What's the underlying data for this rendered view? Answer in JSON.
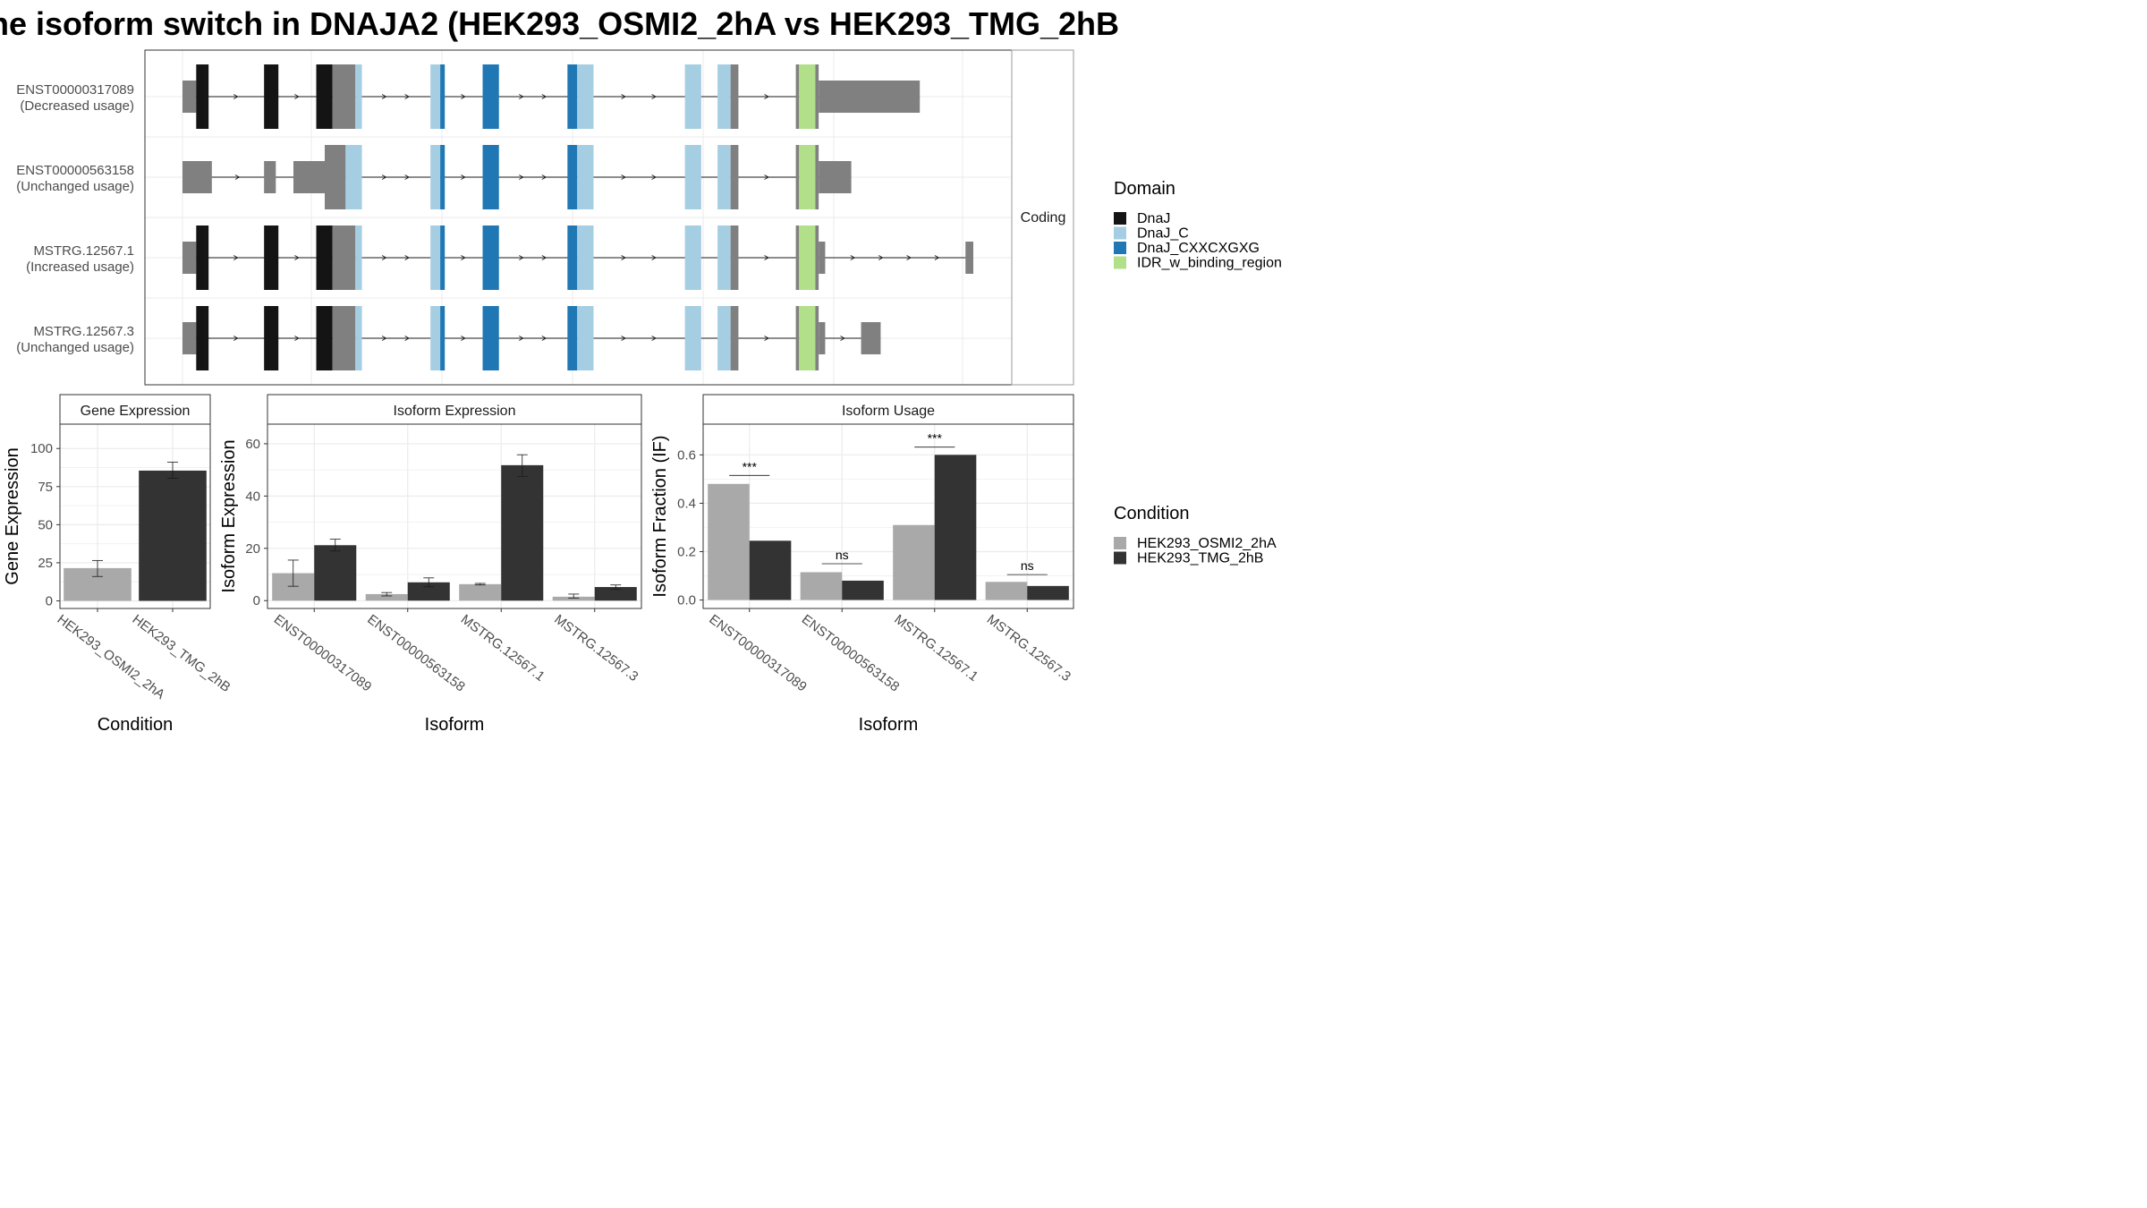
{
  "title": "ne isoform switch in DNAJA2 (HEK293_OSMI2_2hA vs HEK293_TMG_2hB",
  "structure": {
    "strip_label": "Coding",
    "transcripts": [
      {
        "id": "ENST00000317089",
        "status": "(Decreased usage)",
        "segments": [
          {
            "x0": 0.0,
            "x1": 2.1,
            "kind": "utr"
          },
          {
            "x0": 2.1,
            "x1": 3.5,
            "kind": "DnaJ"
          },
          {
            "x0": 3.5,
            "x1": 4.0,
            "kind": "DnaJ"
          },
          {
            "x0": 12.5,
            "x1": 14.7,
            "kind": "DnaJ"
          },
          {
            "x0": 20.5,
            "x1": 23.0,
            "kind": "DnaJ"
          },
          {
            "x0": 23.0,
            "x1": 26.5,
            "kind": "cds"
          },
          {
            "x0": 26.5,
            "x1": 27.5,
            "kind": "DnaJ_C"
          },
          {
            "x0": 38.0,
            "x1": 39.5,
            "kind": "DnaJ_C"
          },
          {
            "x0": 39.5,
            "x1": 40.2,
            "kind": "DnaJ_CXXCXGXG"
          },
          {
            "x0": 46.0,
            "x1": 48.5,
            "kind": "DnaJ_CXXCXGXG"
          },
          {
            "x0": 59.0,
            "x1": 60.5,
            "kind": "DnaJ_CXXCXGXG"
          },
          {
            "x0": 60.5,
            "x1": 63.0,
            "kind": "DnaJ_C"
          },
          {
            "x0": 77.0,
            "x1": 79.5,
            "kind": "DnaJ_C"
          },
          {
            "x0": 82.0,
            "x1": 84.0,
            "kind": "DnaJ_C"
          },
          {
            "x0": 84.0,
            "x1": 85.2,
            "kind": "cds"
          },
          {
            "x0": 94.0,
            "x1": 94.5,
            "kind": "cds"
          },
          {
            "x0": 94.5,
            "x1": 97.0,
            "kind": "IDR_w_binding_region"
          },
          {
            "x0": 97.0,
            "x1": 97.5,
            "kind": "cds"
          },
          {
            "x0": 97.5,
            "x1": 113.0,
            "kind": "utr"
          }
        ]
      },
      {
        "id": "ENST00000563158",
        "status": "(Unchanged usage)",
        "segments": [
          {
            "x0": 0.0,
            "x1": 4.5,
            "kind": "utr"
          },
          {
            "x0": 12.5,
            "x1": 14.3,
            "kind": "utr"
          },
          {
            "x0": 17.0,
            "x1": 21.8,
            "kind": "utr"
          },
          {
            "x0": 21.8,
            "x1": 25.0,
            "kind": "cds"
          },
          {
            "x0": 25.0,
            "x1": 27.5,
            "kind": "DnaJ_C"
          },
          {
            "x0": 38.0,
            "x1": 39.5,
            "kind": "DnaJ_C"
          },
          {
            "x0": 39.5,
            "x1": 40.2,
            "kind": "DnaJ_CXXCXGXG"
          },
          {
            "x0": 46.0,
            "x1": 48.5,
            "kind": "DnaJ_CXXCXGXG"
          },
          {
            "x0": 59.0,
            "x1": 60.5,
            "kind": "DnaJ_CXXCXGXG"
          },
          {
            "x0": 60.5,
            "x1": 63.0,
            "kind": "DnaJ_C"
          },
          {
            "x0": 77.0,
            "x1": 79.5,
            "kind": "DnaJ_C"
          },
          {
            "x0": 82.0,
            "x1": 84.0,
            "kind": "DnaJ_C"
          },
          {
            "x0": 84.0,
            "x1": 85.2,
            "kind": "cds"
          },
          {
            "x0": 94.0,
            "x1": 94.5,
            "kind": "cds"
          },
          {
            "x0": 94.5,
            "x1": 97.0,
            "kind": "IDR_w_binding_region"
          },
          {
            "x0": 97.0,
            "x1": 97.5,
            "kind": "cds"
          },
          {
            "x0": 97.5,
            "x1": 102.5,
            "kind": "utr"
          }
        ]
      },
      {
        "id": "MSTRG.12567.1",
        "status": "(Increased usage)",
        "segments": [
          {
            "x0": 0.0,
            "x1": 2.1,
            "kind": "utr"
          },
          {
            "x0": 2.1,
            "x1": 3.5,
            "kind": "DnaJ"
          },
          {
            "x0": 3.5,
            "x1": 4.0,
            "kind": "DnaJ"
          },
          {
            "x0": 12.5,
            "x1": 14.7,
            "kind": "DnaJ"
          },
          {
            "x0": 20.5,
            "x1": 23.0,
            "kind": "DnaJ"
          },
          {
            "x0": 23.0,
            "x1": 26.5,
            "kind": "cds"
          },
          {
            "x0": 26.5,
            "x1": 27.5,
            "kind": "DnaJ_C"
          },
          {
            "x0": 38.0,
            "x1": 39.5,
            "kind": "DnaJ_C"
          },
          {
            "x0": 39.5,
            "x1": 40.2,
            "kind": "DnaJ_CXXCXGXG"
          },
          {
            "x0": 46.0,
            "x1": 48.5,
            "kind": "DnaJ_CXXCXGXG"
          },
          {
            "x0": 59.0,
            "x1": 60.5,
            "kind": "DnaJ_CXXCXGXG"
          },
          {
            "x0": 60.5,
            "x1": 63.0,
            "kind": "DnaJ_C"
          },
          {
            "x0": 77.0,
            "x1": 79.5,
            "kind": "DnaJ_C"
          },
          {
            "x0": 82.0,
            "x1": 84.0,
            "kind": "DnaJ_C"
          },
          {
            "x0": 84.0,
            "x1": 85.2,
            "kind": "cds"
          },
          {
            "x0": 94.0,
            "x1": 94.5,
            "kind": "cds"
          },
          {
            "x0": 94.5,
            "x1": 97.0,
            "kind": "IDR_w_binding_region"
          },
          {
            "x0": 97.0,
            "x1": 97.5,
            "kind": "cds"
          },
          {
            "x0": 97.5,
            "x1": 98.5,
            "kind": "utr"
          },
          {
            "x0": 120.0,
            "x1": 121.2,
            "kind": "utr"
          }
        ]
      },
      {
        "id": "MSTRG.12567.3",
        "status": "(Unchanged usage)",
        "segments": [
          {
            "x0": 0.0,
            "x1": 2.1,
            "kind": "utr"
          },
          {
            "x0": 2.1,
            "x1": 3.5,
            "kind": "DnaJ"
          },
          {
            "x0": 3.5,
            "x1": 4.0,
            "kind": "DnaJ"
          },
          {
            "x0": 12.5,
            "x1": 14.7,
            "kind": "DnaJ"
          },
          {
            "x0": 20.5,
            "x1": 23.0,
            "kind": "DnaJ"
          },
          {
            "x0": 23.0,
            "x1": 26.5,
            "kind": "cds"
          },
          {
            "x0": 26.5,
            "x1": 27.5,
            "kind": "DnaJ_C"
          },
          {
            "x0": 38.0,
            "x1": 39.5,
            "kind": "DnaJ_C"
          },
          {
            "x0": 39.5,
            "x1": 40.2,
            "kind": "DnaJ_CXXCXGXG"
          },
          {
            "x0": 46.0,
            "x1": 48.5,
            "kind": "DnaJ_CXXCXGXG"
          },
          {
            "x0": 59.0,
            "x1": 60.5,
            "kind": "DnaJ_CXXCXGXG"
          },
          {
            "x0": 60.5,
            "x1": 63.0,
            "kind": "DnaJ_C"
          },
          {
            "x0": 77.0,
            "x1": 79.5,
            "kind": "DnaJ_C"
          },
          {
            "x0": 82.0,
            "x1": 84.0,
            "kind": "DnaJ_C"
          },
          {
            "x0": 84.0,
            "x1": 85.2,
            "kind": "cds"
          },
          {
            "x0": 94.0,
            "x1": 94.5,
            "kind": "cds"
          },
          {
            "x0": 94.5,
            "x1": 97.0,
            "kind": "IDR_w_binding_region"
          },
          {
            "x0": 97.0,
            "x1": 97.5,
            "kind": "cds"
          },
          {
            "x0": 97.5,
            "x1": 98.5,
            "kind": "utr"
          },
          {
            "x0": 104.0,
            "x1": 107.0,
            "kind": "utr"
          }
        ]
      }
    ]
  },
  "legend_domain": {
    "title": "Domain",
    "items": [
      {
        "label": "DnaJ",
        "color": "#141414"
      },
      {
        "label": "DnaJ_C",
        "color": "#a6cee3"
      },
      {
        "label": "DnaJ_CXXCXGXG",
        "color": "#1f78b4"
      },
      {
        "label": "IDR_w_binding_region",
        "color": "#b2df8a"
      }
    ]
  },
  "legend_condition": {
    "title": "Condition",
    "items": [
      {
        "label": "HEK293_OSMI2_2hA",
        "color": "#a9a9a9"
      },
      {
        "label": "HEK293_TMG_2hB",
        "color": "#333333"
      }
    ]
  },
  "colors": {
    "utr": "#808080",
    "cds": "#808080",
    "gridline": "#ebebeb",
    "panel_border": "#333333"
  },
  "chart_data": [
    {
      "type": "bar",
      "title": "Gene Expression",
      "xlabel": "Condition",
      "ylabel": "Gene Expression",
      "categories": [
        "HEK293_OSMI2_2hA",
        "HEK293_TMG_2hB"
      ],
      "values": [
        21.5,
        85.5
      ],
      "errors": [
        [
          16.0,
          26.5
        ],
        [
          80.5,
          91.0
        ]
      ],
      "yticks": [
        "0",
        "25",
        "50",
        "75",
        "100"
      ],
      "ytick_values": [
        0,
        25,
        50,
        75,
        100
      ],
      "ylim": [
        -5,
        116
      ],
      "colors": [
        "#a9a9a9",
        "#333333"
      ]
    },
    {
      "type": "bar",
      "title": "Isoform Expression",
      "xlabel": "Isoform",
      "ylabel": "Isoform Expression",
      "categories": [
        "ENST00000317089",
        "ENST00000563158",
        "MSTRG.12567.1",
        "MSTRG.12567.3"
      ],
      "series": [
        {
          "name": "HEK293_OSMI2_2hA",
          "values": [
            10.5,
            2.5,
            6.3,
            1.5
          ],
          "errors": [
            [
              5.5,
              15.5
            ],
            [
              1.8,
              3.1
            ],
            [
              6.0,
              6.6
            ],
            [
              1.0,
              2.5
            ]
          ]
        },
        {
          "name": "HEK293_TMG_2hB",
          "values": [
            21.2,
            7.0,
            51.8,
            5.2
          ],
          "errors": [
            [
              19.0,
              23.5
            ],
            [
              5.3,
              8.7
            ],
            [
              47.5,
              55.8
            ],
            [
              4.3,
              6.0
            ]
          ]
        }
      ],
      "yticks": [
        "0",
        "20",
        "40",
        "60"
      ],
      "ytick_values": [
        0,
        20,
        40,
        60
      ],
      "ylim": [
        -3,
        67.5
      ]
    },
    {
      "type": "bar",
      "title": "Isoform Usage",
      "xlabel": "Isoform",
      "ylabel": "Isoform Fraction (IF)",
      "categories": [
        "ENST00000317089",
        "ENST00000563158",
        "MSTRG.12567.1",
        "MSTRG.12567.3"
      ],
      "series": [
        {
          "name": "HEK293_OSMI2_2hA",
          "values": [
            0.48,
            0.115,
            0.31,
            0.075
          ]
        },
        {
          "name": "HEK293_TMG_2hB",
          "values": [
            0.245,
            0.08,
            0.6,
            0.058
          ]
        }
      ],
      "significance": [
        "***",
        "ns",
        "***",
        "ns"
      ],
      "sig_heights": [
        0.515,
        0.15,
        0.632,
        0.105
      ],
      "yticks": [
        "0.0",
        "0.2",
        "0.4",
        "0.6"
      ],
      "ytick_values": [
        0,
        0.2,
        0.4,
        0.6
      ],
      "ylim": [
        -0.035,
        0.727
      ]
    }
  ]
}
